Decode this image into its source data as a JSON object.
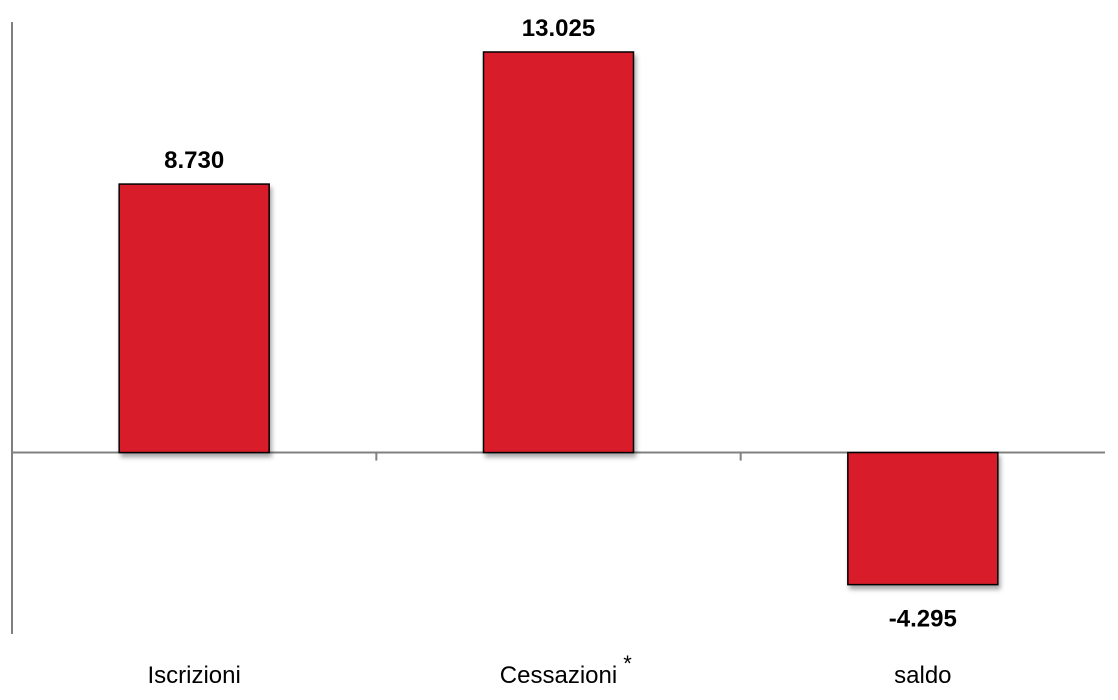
{
  "chart_data": {
    "type": "bar",
    "categories": [
      "Iscrizioni",
      "Cessazioni",
      "saldo"
    ],
    "category_marks": [
      "",
      "*",
      ""
    ],
    "values": [
      8730,
      13025,
      -4295
    ],
    "data_labels": [
      "8.730",
      "13.025",
      "-4.295"
    ],
    "title": "",
    "xlabel": "",
    "ylabel": "",
    "ylim": [
      -5900,
      14000
    ],
    "grid": false,
    "legend": "none",
    "colors": {
      "bar_fill": "#d81f2a",
      "bar_stroke": "#000000",
      "axis": "#808080"
    }
  }
}
